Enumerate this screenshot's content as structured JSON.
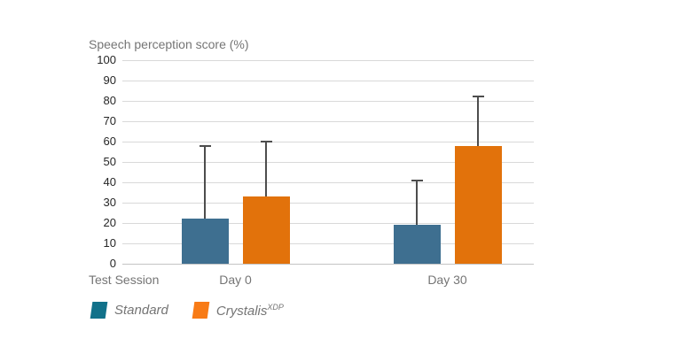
{
  "title": "Speech perception score (%)",
  "x_axis_title": "Test Session",
  "legend": {
    "items": [
      {
        "label": "Standard",
        "sup": "",
        "color": "#11718a"
      },
      {
        "label": "Crystalis",
        "sup": "XDP",
        "color": "#f87b16"
      }
    ]
  },
  "colors": {
    "bar_standard": "#3e6f90",
    "bar_crystalis": "#e2720b",
    "gridline": "#d9d9d9",
    "error_bar": "#4d4d4d",
    "axis_text": "#262626",
    "label_text": "#757575"
  },
  "chart_data": {
    "type": "bar",
    "title": "Speech perception score (%)",
    "xlabel": "Test Session",
    "ylabel": "Speech perception score (%)",
    "categories": [
      "Day 0",
      "Day 30"
    ],
    "series": [
      {
        "name": "Standard",
        "color": "#3e6f90",
        "values": [
          22,
          19
        ],
        "error_top": [
          58,
          41
        ]
      },
      {
        "name": "CrystalisXDP",
        "color": "#e2720b",
        "values": [
          33,
          58
        ],
        "error_top": [
          60,
          82
        ]
      }
    ],
    "ylim": [
      0,
      100
    ],
    "ytick_step": 10,
    "grid": true,
    "legend_position": "bottom"
  }
}
